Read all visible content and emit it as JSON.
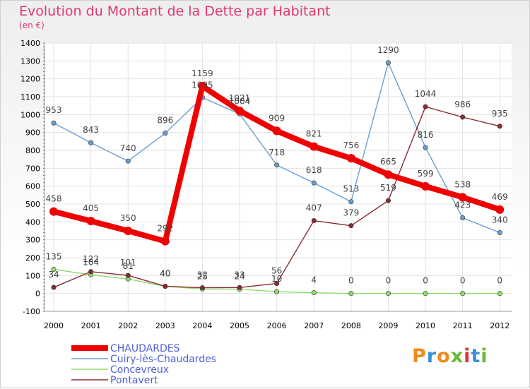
{
  "title": "Evolution du Montant de la Dette par Habitant",
  "unit": "(en €)",
  "logo": {
    "text": "Proxiti",
    "colors": [
      "#f08a1c",
      "#3a8fd8",
      "#f08a1c",
      "#6ab83a",
      "#d8383a",
      "#3a8fd8",
      "#6ab83a"
    ]
  },
  "chart_data": {
    "type": "line",
    "x": [
      2000,
      2001,
      2002,
      2003,
      2004,
      2005,
      2006,
      2007,
      2008,
      2009,
      2010,
      2011,
      2012
    ],
    "ylim": [
      -100,
      1400
    ],
    "yticks": [
      -100,
      0,
      100,
      200,
      300,
      400,
      500,
      600,
      700,
      800,
      900,
      1000,
      1100,
      1200,
      1300,
      1400
    ],
    "grid": true,
    "legend_position": "bottom-left",
    "series": [
      {
        "name": "CHAUDARDES",
        "color": "#f00000",
        "values": [
          458,
          405,
          350,
          292,
          1159,
          1021,
          909,
          821,
          756,
          665,
          599,
          538,
          469
        ]
      },
      {
        "name": "Cuiry-lès-Chaudardes",
        "color": "#6a9ed3",
        "values": [
          953,
          843,
          740,
          896,
          1095,
          1004,
          718,
          618,
          513,
          1290,
          816,
          423,
          340
        ]
      },
      {
        "name": "Concevreux",
        "color": "#8fdc6a",
        "values": [
          135,
          104,
          81,
          40,
          25,
          24,
          10,
          4,
          0,
          0,
          0,
          0,
          0
        ]
      },
      {
        "name": "Pontavert",
        "color": "#8a2c30",
        "values": [
          34,
          122,
          101,
          40,
          32,
          33,
          56,
          407,
          379,
          519,
          1044,
          986,
          935
        ]
      }
    ]
  }
}
